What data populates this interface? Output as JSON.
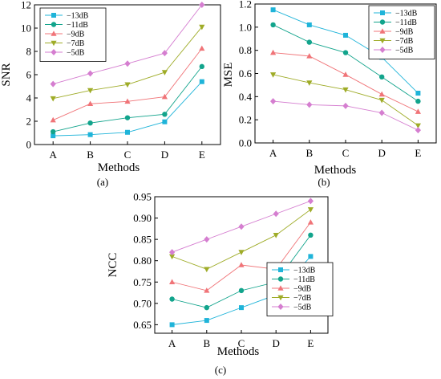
{
  "colors": {
    "series": [
      "#1fb4d9",
      "#12a48c",
      "#f07478",
      "#9fac28",
      "#d57ed0"
    ]
  },
  "chart_data": [
    {
      "panel_label": "(a)",
      "type": "line",
      "ylabel": "SNR",
      "xlabel": "Methods",
      "categories": [
        "A",
        "B",
        "C",
        "D",
        "E"
      ],
      "ylim": [
        0,
        12
      ],
      "yticks": [
        "0",
        "2",
        "4",
        "6",
        "8",
        "10",
        "12"
      ],
      "legend_position": "top-left",
      "series": [
        {
          "name": "−13dB",
          "marker": "square",
          "values": [
            0.75,
            0.85,
            1.05,
            1.95,
            5.4
          ]
        },
        {
          "name": "−11dB",
          "marker": "circle",
          "values": [
            1.1,
            1.85,
            2.3,
            2.6,
            6.7
          ]
        },
        {
          "name": "−9dB",
          "marker": "triangle-up",
          "values": [
            2.1,
            3.5,
            3.7,
            4.1,
            8.25
          ]
        },
        {
          "name": "−7dB",
          "marker": "triangle-down",
          "values": [
            3.95,
            4.65,
            5.15,
            6.2,
            10.1
          ]
        },
        {
          "name": "−5dB",
          "marker": "diamond",
          "values": [
            5.2,
            6.1,
            6.95,
            7.85,
            12.0
          ]
        }
      ]
    },
    {
      "panel_label": "(b)",
      "type": "line",
      "ylabel": "MSE",
      "xlabel": "Methods",
      "categories": [
        "A",
        "B",
        "C",
        "D",
        "E"
      ],
      "ylim": [
        0,
        1.2
      ],
      "yticks": [
        "0.0",
        "0.2",
        "0.4",
        "0.6",
        "0.8",
        "1.0",
        "1.2"
      ],
      "legend_position": "top-right",
      "series": [
        {
          "name": "−13dB",
          "marker": "square",
          "values": [
            1.15,
            1.02,
            0.93,
            0.74,
            0.43
          ]
        },
        {
          "name": "−11dB",
          "marker": "circle",
          "values": [
            1.02,
            0.87,
            0.78,
            0.57,
            0.36
          ]
        },
        {
          "name": "−9dB",
          "marker": "triangle-up",
          "values": [
            0.78,
            0.75,
            0.59,
            0.42,
            0.27
          ]
        },
        {
          "name": "−7dB",
          "marker": "triangle-down",
          "values": [
            0.59,
            0.52,
            0.46,
            0.37,
            0.15
          ]
        },
        {
          "name": "−5dB",
          "marker": "diamond",
          "values": [
            0.36,
            0.33,
            0.32,
            0.26,
            0.11
          ]
        }
      ]
    },
    {
      "panel_label": "(c)",
      "type": "line",
      "ylabel": "NCC",
      "xlabel": "Methods",
      "categories": [
        "A",
        "B",
        "C",
        "D",
        "E"
      ],
      "ylim": [
        0.63,
        0.95
      ],
      "yticks": [
        "0.65",
        "0.70",
        "0.75",
        "0.80",
        "0.85",
        "0.90",
        "0.95"
      ],
      "legend_position": "bottom-right",
      "series": [
        {
          "name": "−13dB",
          "marker": "square",
          "values": [
            0.65,
            0.66,
            0.69,
            0.72,
            0.81
          ]
        },
        {
          "name": "−11dB",
          "marker": "circle",
          "values": [
            0.71,
            0.69,
            0.73,
            0.75,
            0.86
          ]
        },
        {
          "name": "−9dB",
          "marker": "triangle-up",
          "values": [
            0.75,
            0.73,
            0.79,
            0.78,
            0.89
          ]
        },
        {
          "name": "−7dB",
          "marker": "triangle-down",
          "values": [
            0.81,
            0.78,
            0.82,
            0.86,
            0.92
          ]
        },
        {
          "name": "−5dB",
          "marker": "diamond",
          "values": [
            0.82,
            0.85,
            0.88,
            0.91,
            0.94
          ]
        }
      ]
    }
  ]
}
